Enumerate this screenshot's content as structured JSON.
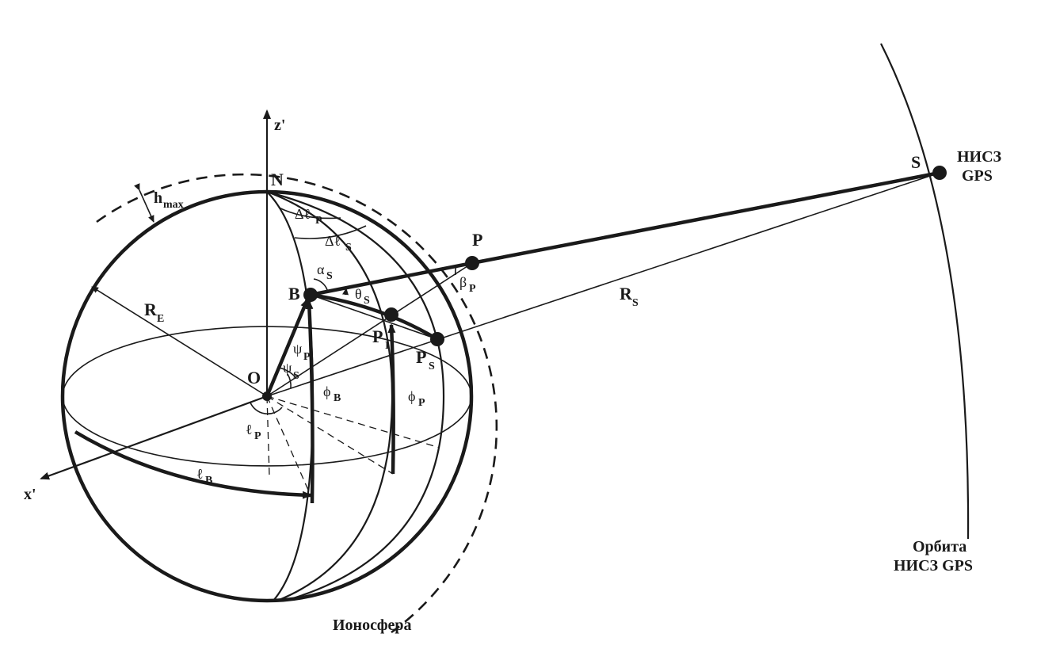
{
  "labels": {
    "z_axis": "z'",
    "x_axis": "x'",
    "north": "N",
    "origin": "O",
    "point_b": "B",
    "point_p": "P",
    "point_pi_main": "P",
    "point_pi_sub": "I",
    "point_ps_main": "P",
    "point_ps_sub": "S",
    "point_s": "S",
    "h_max_main": "h",
    "h_max_sub": "max",
    "re_main": "R",
    "re_sub": "E",
    "rs_main": "R",
    "rs_sub": "S",
    "delta_lp_main": "Δℓ",
    "delta_lp_sub": "P",
    "delta_ls_main": "Δℓ",
    "delta_ls_sub": "S",
    "alpha_s_main": "α",
    "alpha_s_sub": "S",
    "theta_s_main": "θ",
    "theta_s_sub": "S",
    "beta_p_main": "β",
    "beta_p_sub": "P",
    "psi_p_main": "ψ",
    "psi_p_sub": "P",
    "psi_s_main": "ψ",
    "psi_s_sub": "S",
    "phi_b_main": "ϕ",
    "phi_b_sub": "B",
    "phi_p_main": "ϕ",
    "phi_p_sub": "P",
    "l_p_main": "ℓ",
    "l_p_sub": "P",
    "l_b_main": "ℓ",
    "l_b_sub": "B",
    "satellite_line1": "НИСЗ",
    "satellite_line2": "GPS",
    "orbit_line1": "Орбита",
    "orbit_line2": "НИСЗ GPS",
    "ionosphere": "Ионосфера"
  }
}
